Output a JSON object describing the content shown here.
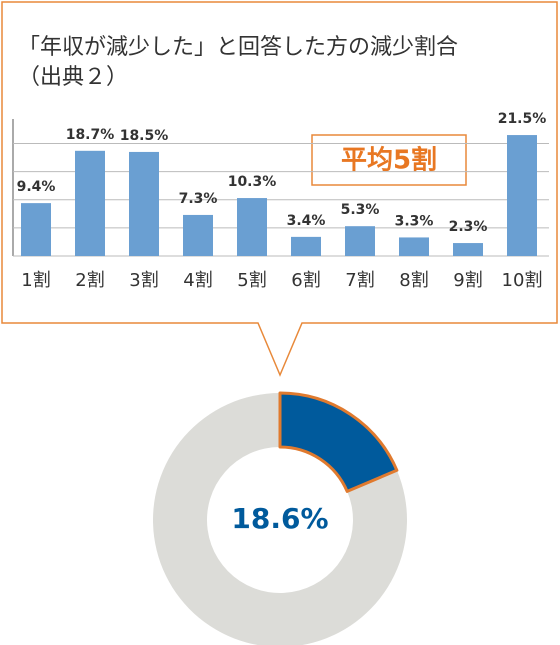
{
  "chart_data": [
    {
      "type": "bar",
      "title": "「年収が減少した」と回答した方の減少割合",
      "subtitle": "（出典２）",
      "categories": [
        "1割",
        "2割",
        "3割",
        "4割",
        "5割",
        "6割",
        "7割",
        "8割",
        "9割",
        "10割"
      ],
      "values": [
        9.4,
        18.7,
        18.5,
        7.3,
        10.3,
        3.4,
        5.3,
        3.3,
        2.3,
        21.5
      ],
      "value_labels": [
        "9.4%",
        "18.7%",
        "18.5%",
        "7.3%",
        "10.3%",
        "3.4%",
        "5.3%",
        "3.3%",
        "2.3%",
        "21.5%"
      ],
      "color": "#6a9fd2",
      "ylim": [
        0,
        24
      ],
      "yticks": [
        0,
        5,
        10,
        15,
        20
      ],
      "grid": true,
      "annotation": "平均5割"
    },
    {
      "type": "donut",
      "categories": [
        null,
        null
      ],
      "values": [
        18.6,
        81.4
      ],
      "value_labels": [
        "18.6%",
        null
      ],
      "colors": [
        "#005a9c",
        "#dcdcd8"
      ]
    }
  ]
}
